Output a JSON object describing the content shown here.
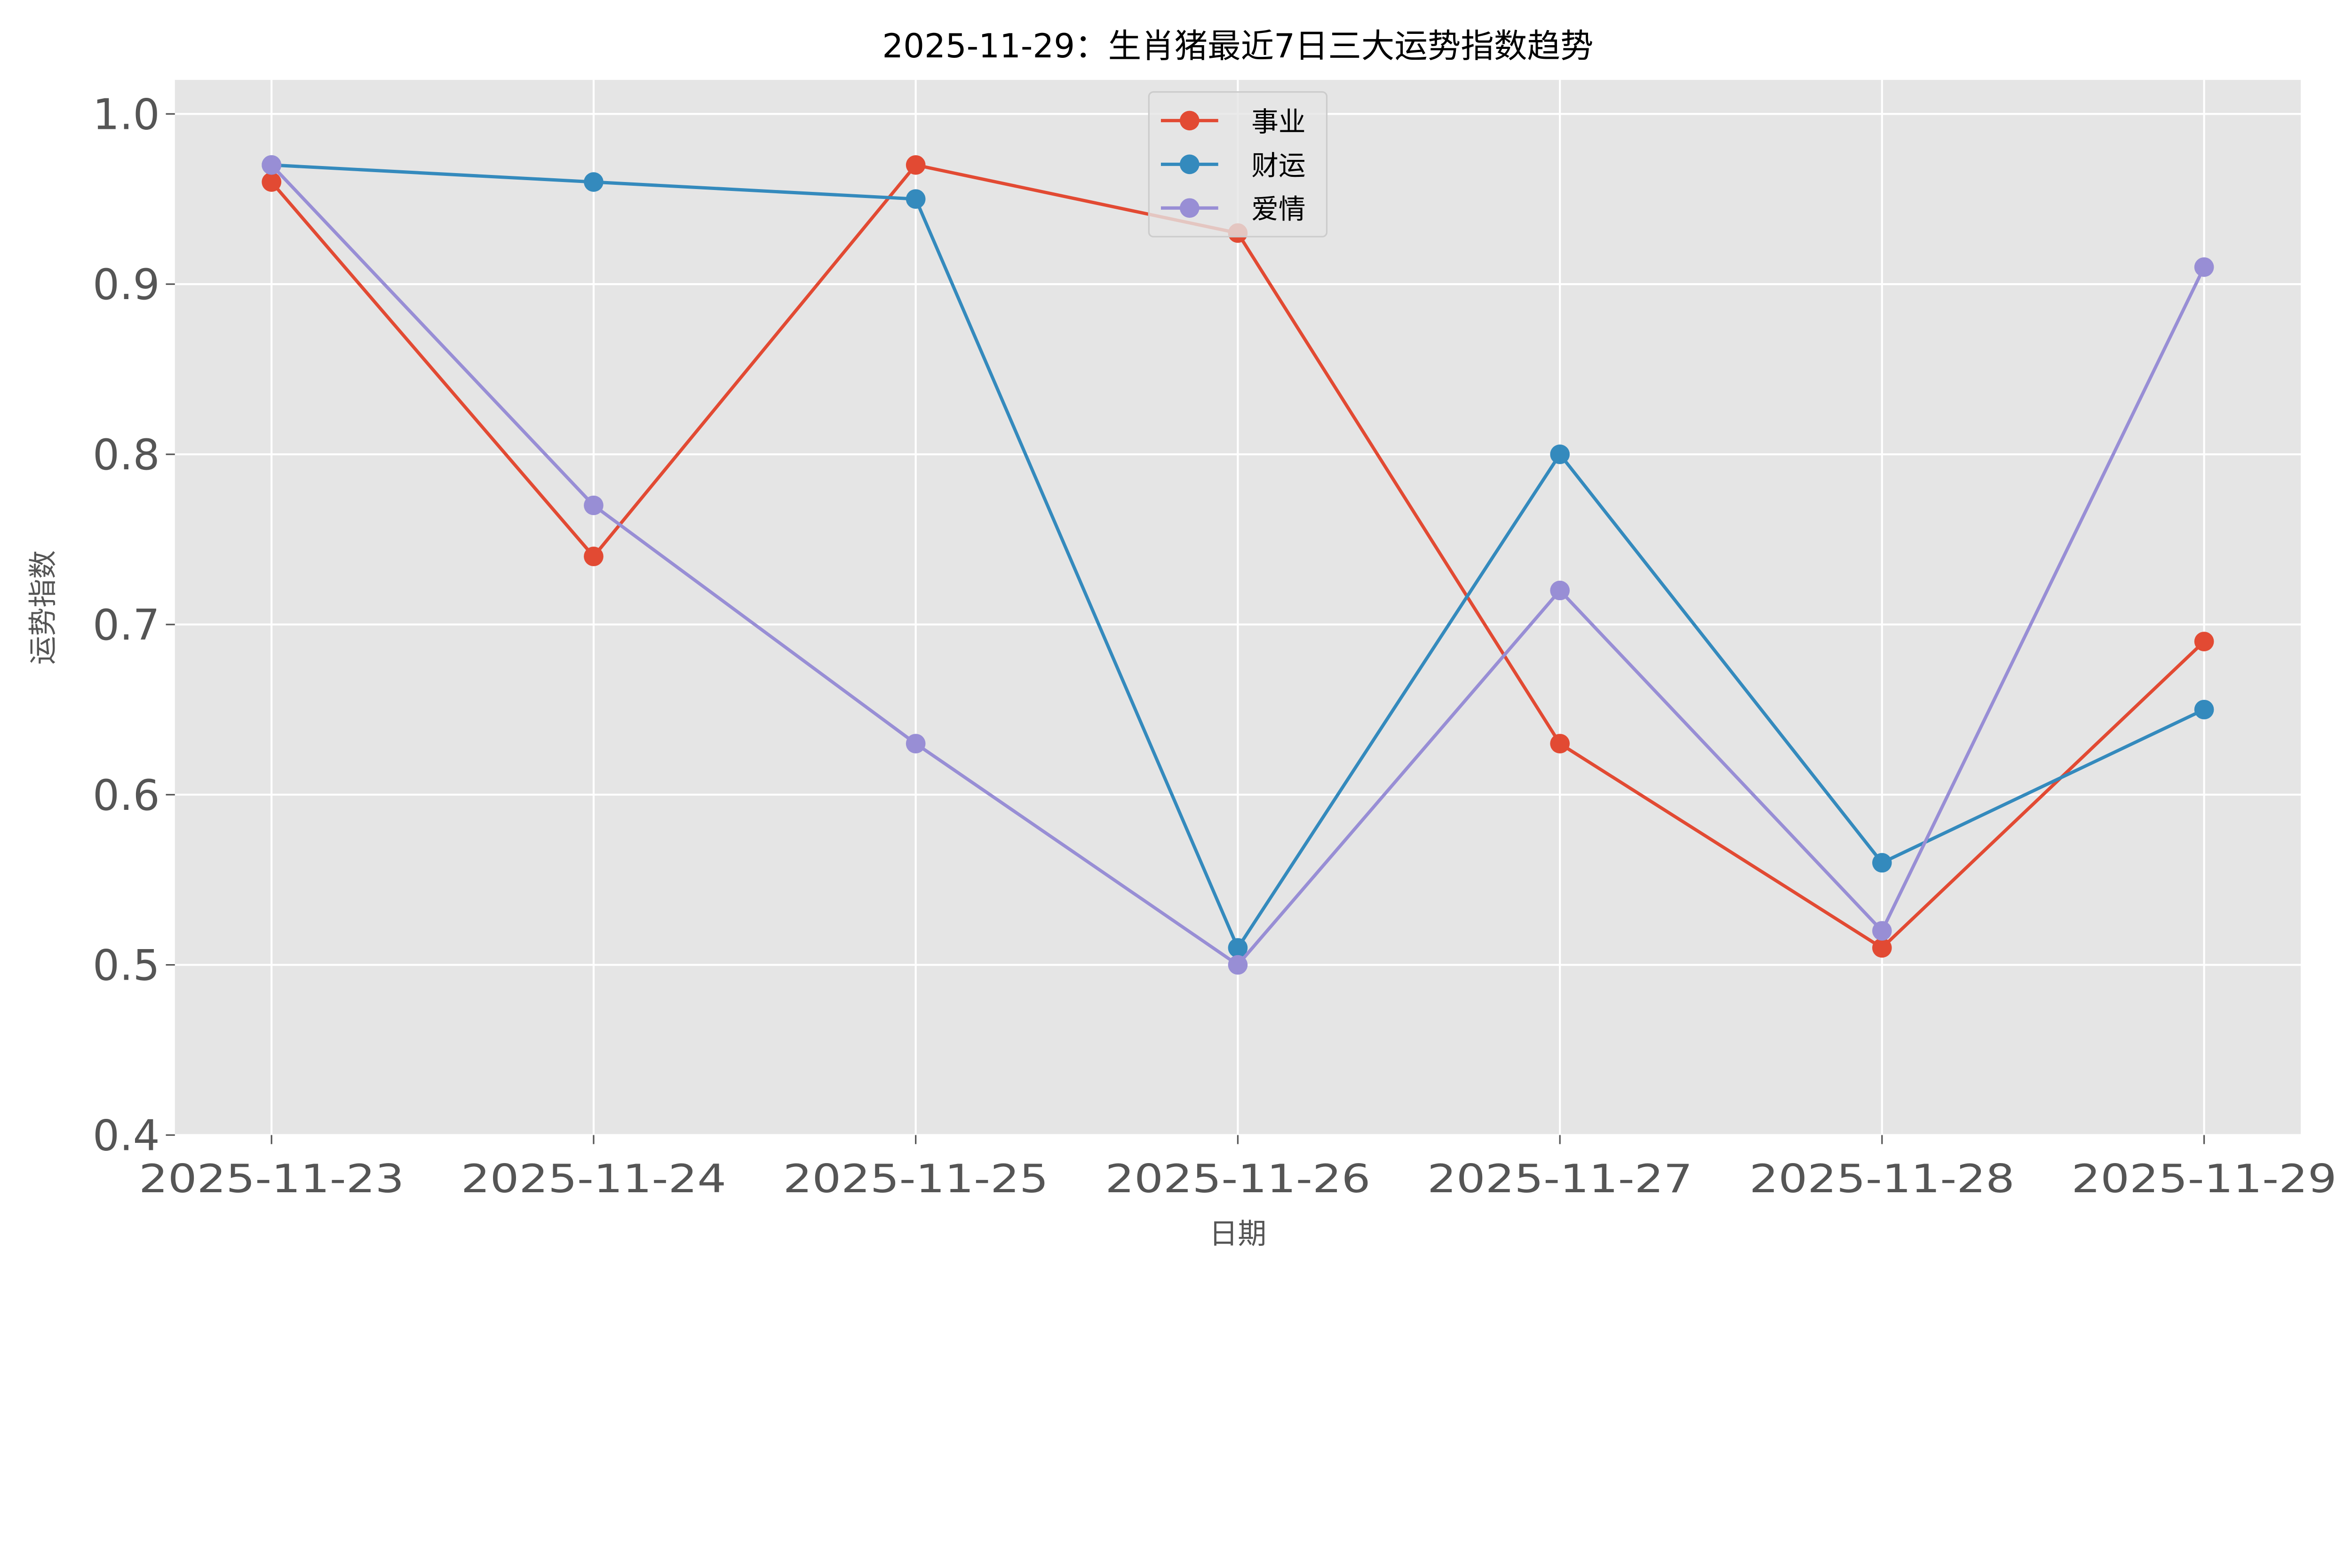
{
  "chart_data": {
    "type": "line",
    "title": "2025-11-29：生肖猪最近7日三大运势指数趋势",
    "xlabel": "日期",
    "ylabel": "运势指数",
    "categories": [
      "2025-11-23",
      "2025-11-24",
      "2025-11-25",
      "2025-11-26",
      "2025-11-27",
      "2025-11-28",
      "2025-11-29"
    ],
    "ylim": [
      0.4,
      1.02
    ],
    "yticks": [
      "0.4",
      "0.5",
      "0.6",
      "0.7",
      "0.8",
      "0.9",
      "1.0"
    ],
    "grid": true,
    "legend_position": "top-center",
    "background": "#E5E5E5",
    "series": [
      {
        "name": "事业",
        "color": "#E24A33",
        "values": [
          0.96,
          0.74,
          0.97,
          0.93,
          0.63,
          0.51,
          0.69
        ]
      },
      {
        "name": "财运",
        "color": "#348ABD",
        "values": [
          0.97,
          0.96,
          0.95,
          0.51,
          0.8,
          0.56,
          0.65
        ]
      },
      {
        "name": "爱情",
        "color": "#988ED5",
        "values": [
          0.97,
          0.77,
          0.63,
          0.5,
          0.72,
          0.52,
          0.91
        ]
      }
    ]
  }
}
